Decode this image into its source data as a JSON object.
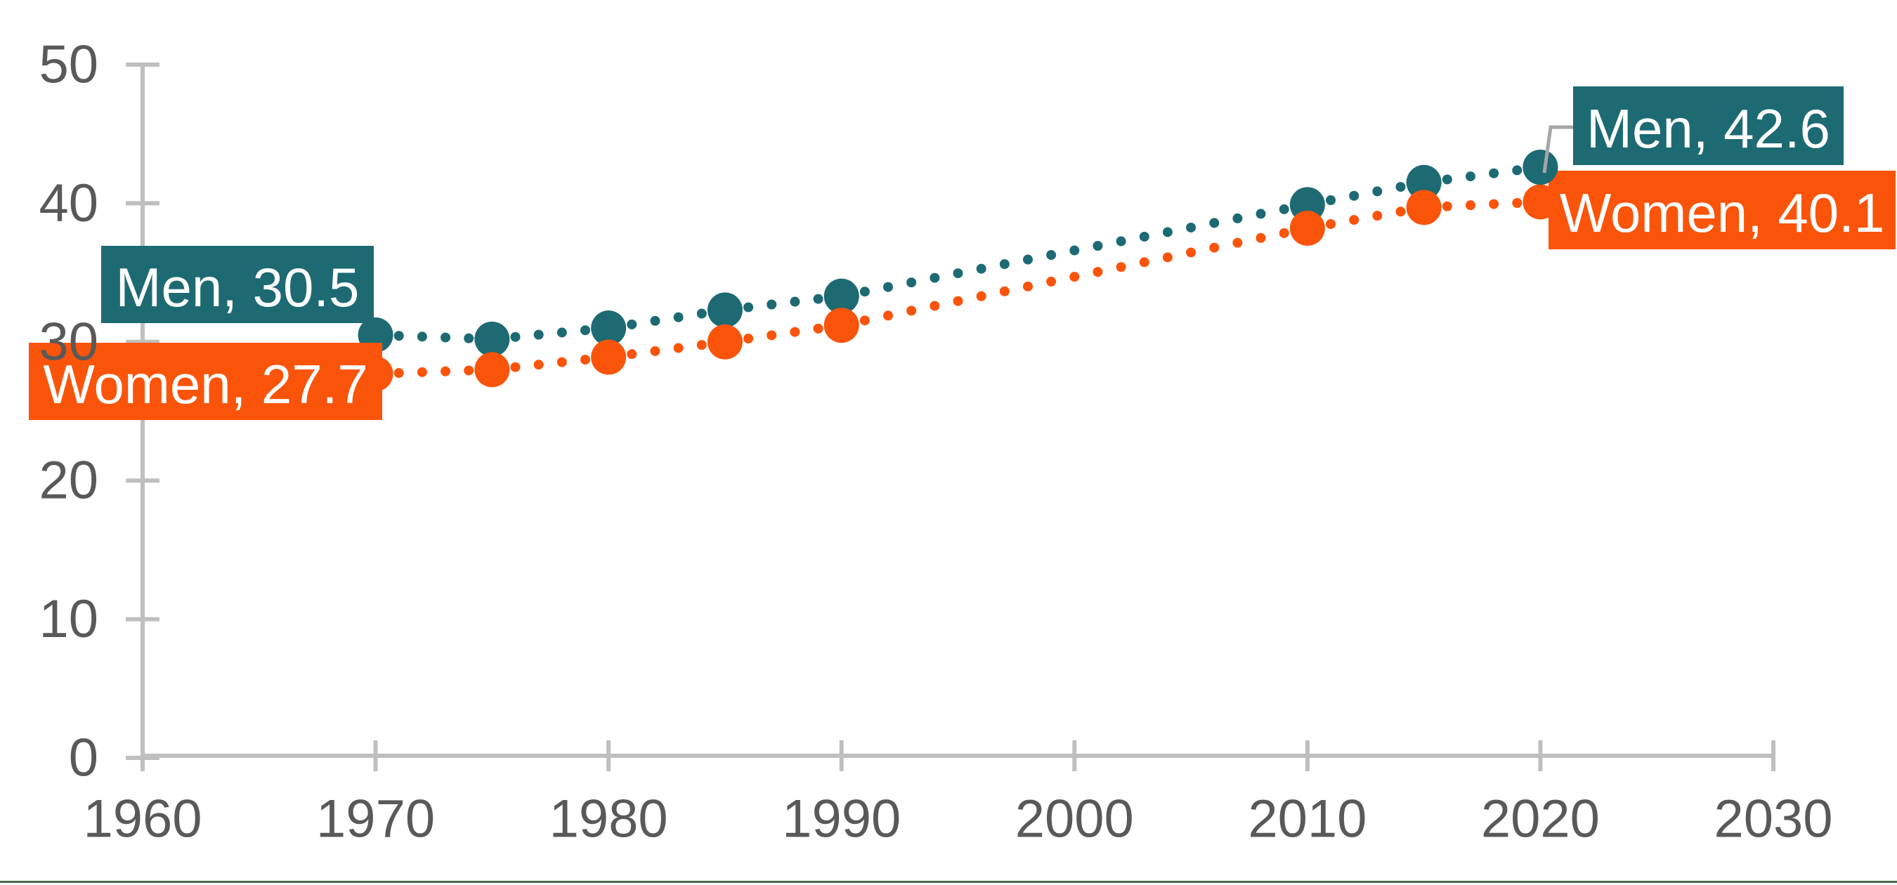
{
  "chart_data": {
    "type": "line",
    "line_style": "dotted",
    "marker": "circle",
    "grid": false,
    "legend": "none",
    "x": [
      1970,
      1975,
      1980,
      1985,
      1990,
      2010,
      2015,
      2020
    ],
    "series": [
      {
        "name": "Men",
        "color": "#1D6A73",
        "values": [
          30.5,
          30.2,
          31.0,
          32.3,
          33.3,
          39.9,
          41.5,
          42.6
        ]
      },
      {
        "name": "Women",
        "color": "#FA540B",
        "values": [
          27.7,
          28.0,
          28.9,
          30.0,
          31.2,
          38.2,
          39.7,
          40.1
        ]
      }
    ],
    "x_ticks": [
      "1960",
      "1970",
      "1980",
      "1990",
      "2000",
      "2010",
      "2020",
      "2030"
    ],
    "y_ticks": [
      "0",
      "10",
      "20",
      "30",
      "40",
      "50"
    ],
    "xlim": [
      1960,
      2030
    ],
    "ylim": [
      0,
      50
    ],
    "point_labels": [
      {
        "id": "men-start",
        "text": "Men, 30.5",
        "series": "Men",
        "year": 1970,
        "value": 30.5
      },
      {
        "id": "women-start",
        "text": "Women, 27.7",
        "series": "Women",
        "year": 1970,
        "value": 27.7
      },
      {
        "id": "men-end",
        "text": "Men, 42.6",
        "series": "Men",
        "year": 2020,
        "value": 42.6,
        "leader_line": true
      },
      {
        "id": "women-end",
        "text": "Women, 40.1",
        "series": "Women",
        "year": 2020,
        "value": 40.1
      }
    ],
    "colors": {
      "axis": "#BFBFBF",
      "tick_label": "#595959",
      "leader_line": "#A6A6A6",
      "label_text": "#FFFFFF",
      "bottom_border": "#456B4F"
    }
  }
}
